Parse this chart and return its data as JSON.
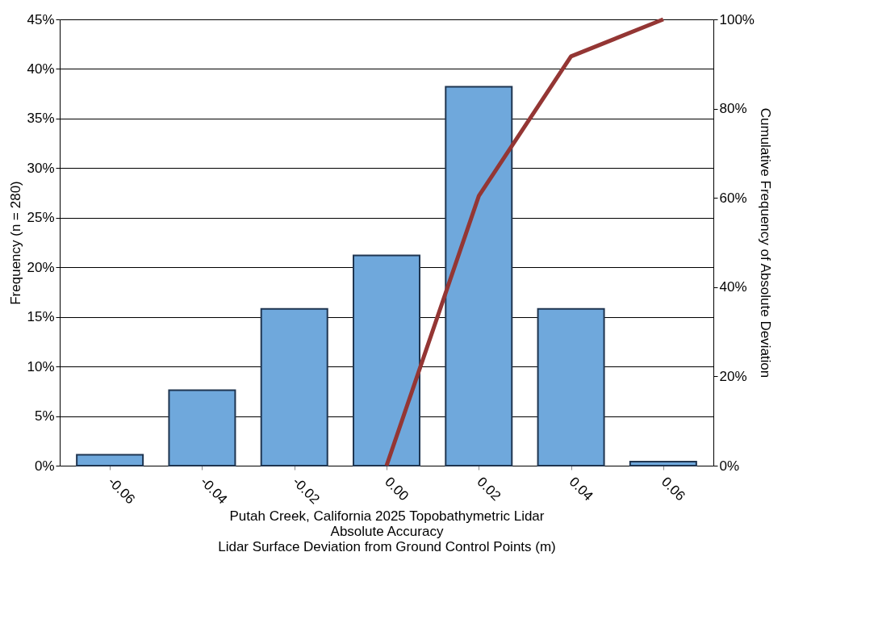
{
  "chart_data": {
    "type": "bar",
    "xlabel": "Putah Creek, California 2025 Topobathymetric Lidar\nAbsolute Accuracy\nLidar Surface Deviation from Ground Control Points (m)",
    "ylabel": "Frequency (n = 280)",
    "y2label": "Cumulative Frequency of Absolute Deviation",
    "categories": [
      "-0.06",
      "-0.04",
      "-0.02",
      "0.00",
      "0.02",
      "0.04",
      "0.06"
    ],
    "series": [
      {
        "color": "#6fa8dc",
        "values": [
          1.1,
          7.6,
          15.8,
          21.2,
          38.2,
          15.8,
          0.4
        ]
      },
      {
        "type": "line",
        "axis": "y2",
        "color": "#943634",
        "values": [
          null,
          null,
          null,
          0,
          60.4,
          91.7,
          100
        ]
      }
    ],
    "ylim": [
      0,
      45
    ],
    "yticks": [
      {
        "value": 0,
        "label": "0%"
      },
      {
        "value": 5,
        "label": "5%"
      },
      {
        "value": 10,
        "label": "10%"
      },
      {
        "value": 15,
        "label": "15%"
      },
      {
        "value": 20,
        "label": "20%"
      },
      {
        "value": 25,
        "label": "25%"
      },
      {
        "value": 30,
        "label": "30%"
      },
      {
        "value": 35,
        "label": "35%"
      },
      {
        "value": 40,
        "label": "40%"
      },
      {
        "value": 45,
        "label": "45%"
      }
    ],
    "y2lim": [
      0,
      100
    ],
    "y2ticks": [
      {
        "value": 0,
        "label": "0%"
      },
      {
        "value": 20,
        "label": "20%"
      },
      {
        "value": 40,
        "label": "40%"
      },
      {
        "value": 60,
        "label": "60%"
      },
      {
        "value": 80,
        "label": "80%"
      },
      {
        "value": 100,
        "label": "100%"
      }
    ],
    "grid": "y"
  }
}
